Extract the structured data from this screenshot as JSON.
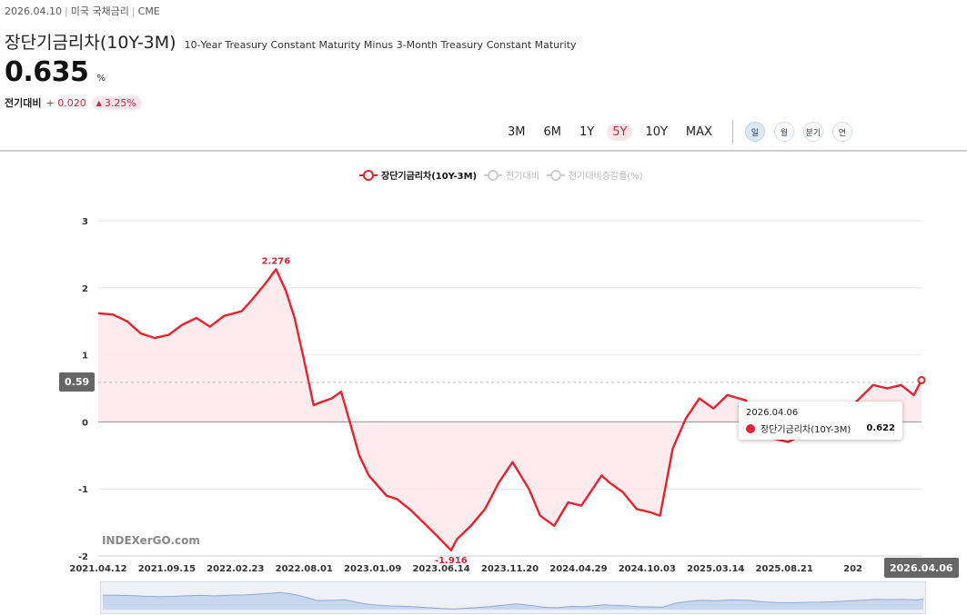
{
  "header": {
    "date": "2026.04.10",
    "category": "미국 국채금리",
    "source": "CME",
    "title": "장단기금리차(10Y-3M)",
    "subtitle": "10-Year Treasury Constant Maturity Minus 3-Month Treasury Constant Maturity",
    "price": "0.635",
    "unit": "%",
    "change_label": "전기대비",
    "change_abs": "+ 0.020",
    "change_pct": "3.25%"
  },
  "toolbar": {
    "ranges": [
      "3M",
      "6M",
      "1Y",
      "5Y",
      "10Y",
      "MAX"
    ],
    "active_range": "5Y",
    "periods": [
      "일",
      "월",
      "분기",
      "연"
    ],
    "active_period": "일"
  },
  "legend": {
    "items": [
      {
        "label": "장단기금리차(10Y-3M)",
        "active": true
      },
      {
        "label": "전기대비",
        "active": false
      },
      {
        "label": "전기대비증감률(%)",
        "active": false
      }
    ]
  },
  "colors": {
    "series": "#e8222f",
    "area": "#fde8ea",
    "grid": "#e6e6e6",
    "badge": "#666666"
  },
  "watermark": "INDEXerGO.com",
  "tooltip": {
    "date": "2026.04.06",
    "series_name": "장단기금리차(10Y-3M)",
    "value": "0.622"
  },
  "badges": {
    "y_current": "0.59",
    "x_current": "2026.04.06"
  },
  "chart_data": {
    "type": "area",
    "title": "",
    "xlabel": "",
    "ylabel": "",
    "ylim": [
      -2,
      3
    ],
    "yticks": [
      3,
      2,
      1,
      0,
      -1,
      -2
    ],
    "xtick_labels": [
      "2021.04.12",
      "2021.09.15",
      "2022.02.23",
      "2022.08.01",
      "2023.01.09",
      "2023.06.14",
      "2023.11.20",
      "2024.04.29",
      "2024.10.03",
      "2025.03.14",
      "2025.08.21",
      "202",
      "2026.04.06"
    ],
    "annotations": [
      {
        "label": "2.276",
        "x": "2022.05.10",
        "y": 2.276
      },
      {
        "label": "-1.916",
        "x": "2023.06.01",
        "y": -1.916
      }
    ],
    "current_line": 0.59,
    "grid": true,
    "legend_position": "top",
    "series": [
      {
        "name": "장단기금리차(10Y-3M)",
        "x": [
          "2021.04.12",
          "2021.05.15",
          "2021.06.15",
          "2021.07.15",
          "2021.08.15",
          "2021.09.15",
          "2021.10.15",
          "2021.11.15",
          "2021.12.15",
          "2022.01.15",
          "2022.02.23",
          "2022.03.15",
          "2022.04.15",
          "2022.05.10",
          "2022.06.01",
          "2022.06.20",
          "2022.07.10",
          "2022.08.01",
          "2022.08.20",
          "2022.09.10",
          "2022.10.01",
          "2022.10.20",
          "2022.11.10",
          "2022.12.01",
          "2023.01.09",
          "2023.02.01",
          "2023.03.01",
          "2023.04.01",
          "2023.05.01",
          "2023.06.01",
          "2023.06.14",
          "2023.07.15",
          "2023.08.15",
          "2023.09.15",
          "2023.10.15",
          "2023.11.20",
          "2023.12.15",
          "2024.01.15",
          "2024.02.15",
          "2024.03.15",
          "2024.04.29",
          "2024.05.15",
          "2024.06.15",
          "2024.07.15",
          "2024.08.15",
          "2024.09.05",
          "2024.10.03",
          "2024.11.01",
          "2024.12.01",
          "2025.01.01",
          "2025.02.01",
          "2025.03.14",
          "2025.04.15",
          "2025.05.15",
          "2025.06.15",
          "2025.07.15",
          "2025.08.21",
          "2025.09.20",
          "2025.10.20",
          "2025.11.20",
          "2025.12.20",
          "2026.01.20",
          "2026.02.20",
          "2026.03.20",
          "2026.04.06"
        ],
        "values": [
          1.62,
          1.6,
          1.5,
          1.32,
          1.25,
          1.3,
          1.45,
          1.55,
          1.42,
          1.58,
          1.65,
          1.8,
          2.05,
          2.276,
          1.95,
          1.55,
          0.95,
          0.25,
          0.3,
          0.35,
          0.45,
          0.0,
          -0.5,
          -0.8,
          -1.1,
          -1.15,
          -1.3,
          -1.5,
          -1.7,
          -1.916,
          -1.75,
          -1.55,
          -1.3,
          -0.9,
          -0.6,
          -1.0,
          -1.4,
          -1.55,
          -1.2,
          -1.25,
          -0.8,
          -0.9,
          -1.05,
          -1.3,
          -1.35,
          -1.4,
          -0.4,
          0.05,
          0.35,
          0.2,
          0.4,
          0.32,
          -0.1,
          -0.25,
          -0.3,
          -0.2,
          -0.15,
          -0.05,
          0.15,
          0.35,
          0.55,
          0.5,
          0.55,
          0.4,
          0.622
        ]
      }
    ]
  }
}
